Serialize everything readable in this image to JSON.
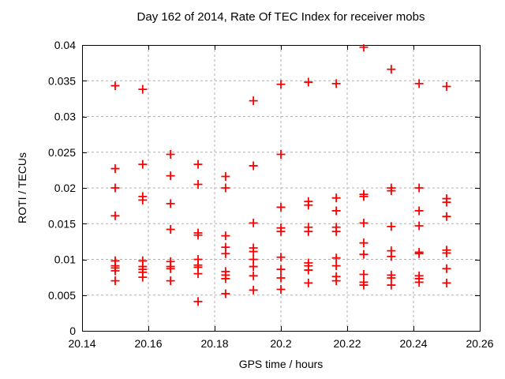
{
  "window": {
    "background": "#ffffff"
  },
  "chart_data": {
    "type": "scatter",
    "title": "Day 162 of 2014, Rate Of TEC Index for receiver mobs",
    "xlabel": "GPS time / hours",
    "ylabel": "ROTI / TECUs",
    "xlim": [
      20.14,
      20.26
    ],
    "ylim": [
      0,
      0.04
    ],
    "xtick_values": [
      20.14,
      20.16,
      20.18,
      20.2,
      20.22,
      20.24,
      20.26
    ],
    "xtick_labels": [
      "20.14",
      "20.16",
      "20.18",
      "20.2",
      "20.22",
      "20.24",
      "20.26"
    ],
    "ytick_values": [
      0,
      0.005,
      0.01,
      0.015,
      0.02,
      0.025,
      0.03,
      0.035,
      0.04
    ],
    "ytick_labels": [
      "0",
      "0.005",
      "0.01",
      "0.015",
      "0.02",
      "0.025",
      "0.03",
      "0.035",
      "0.04"
    ],
    "grid": true,
    "legend": "none",
    "marker": {
      "shape": "plus",
      "color": "#ff0000",
      "size": 11
    },
    "colors": {
      "marker": "#ff0000",
      "grid": "#b0b0b0",
      "axis": "#000000",
      "background": "#ffffff"
    },
    "series": [
      {
        "name": "ROTI",
        "points": [
          [
            20.15,
            0.0343
          ],
          [
            20.15,
            0.0227
          ],
          [
            20.15,
            0.02
          ],
          [
            20.15,
            0.0161
          ],
          [
            20.15,
            0.0098
          ],
          [
            20.15,
            0.0091
          ],
          [
            20.15,
            0.0088
          ],
          [
            20.15,
            0.0084
          ],
          [
            20.15,
            0.007
          ],
          [
            20.1583,
            0.0338
          ],
          [
            20.1583,
            0.0233
          ],
          [
            20.1583,
            0.0188
          ],
          [
            20.1583,
            0.0183
          ],
          [
            20.1583,
            0.0098
          ],
          [
            20.1583,
            0.009
          ],
          [
            20.1583,
            0.0086
          ],
          [
            20.1583,
            0.0082
          ],
          [
            20.1583,
            0.0075
          ],
          [
            20.1667,
            0.0247
          ],
          [
            20.1667,
            0.0217
          ],
          [
            20.1667,
            0.0178
          ],
          [
            20.1667,
            0.0142
          ],
          [
            20.1667,
            0.0097
          ],
          [
            20.1667,
            0.009
          ],
          [
            20.1667,
            0.0087
          ],
          [
            20.1667,
            0.007
          ],
          [
            20.175,
            0.0233
          ],
          [
            20.175,
            0.0205
          ],
          [
            20.175,
            0.0137
          ],
          [
            20.175,
            0.0134
          ],
          [
            20.175,
            0.01
          ],
          [
            20.175,
            0.0092
          ],
          [
            20.175,
            0.0089
          ],
          [
            20.175,
            0.008
          ],
          [
            20.175,
            0.0041
          ],
          [
            20.1833,
            0.0216
          ],
          [
            20.1833,
            0.02
          ],
          [
            20.1833,
            0.0133
          ],
          [
            20.1833,
            0.0117
          ],
          [
            20.1833,
            0.0108
          ],
          [
            20.1833,
            0.0083
          ],
          [
            20.1833,
            0.0078
          ],
          [
            20.1833,
            0.0073
          ],
          [
            20.1833,
            0.0052
          ],
          [
            20.1917,
            0.0322
          ],
          [
            20.1917,
            0.0231
          ],
          [
            20.1917,
            0.0151
          ],
          [
            20.1917,
            0.0116
          ],
          [
            20.1917,
            0.0111
          ],
          [
            20.1917,
            0.01
          ],
          [
            20.1917,
            0.009
          ],
          [
            20.1917,
            0.0077
          ],
          [
            20.1917,
            0.0057
          ],
          [
            20.2,
            0.0345
          ],
          [
            20.2,
            0.0247
          ],
          [
            20.2,
            0.0173
          ],
          [
            20.2,
            0.0144
          ],
          [
            20.2,
            0.0139
          ],
          [
            20.2,
            0.0103
          ],
          [
            20.2,
            0.0086
          ],
          [
            20.2,
            0.0074
          ],
          [
            20.2,
            0.0058
          ],
          [
            20.2083,
            0.0348
          ],
          [
            20.2083,
            0.0181
          ],
          [
            20.2083,
            0.0176
          ],
          [
            20.2083,
            0.0145
          ],
          [
            20.2083,
            0.0139
          ],
          [
            20.2083,
            0.0095
          ],
          [
            20.2083,
            0.0091
          ],
          [
            20.2083,
            0.0085
          ],
          [
            20.2083,
            0.0067
          ],
          [
            20.2167,
            0.0346
          ],
          [
            20.2167,
            0.0186
          ],
          [
            20.2167,
            0.0168
          ],
          [
            20.2167,
            0.0145
          ],
          [
            20.2167,
            0.0139
          ],
          [
            20.2167,
            0.0102
          ],
          [
            20.2167,
            0.0091
          ],
          [
            20.2167,
            0.0076
          ],
          [
            20.2167,
            0.007
          ],
          [
            20.225,
            0.0397
          ],
          [
            20.225,
            0.0191
          ],
          [
            20.225,
            0.0188
          ],
          [
            20.225,
            0.0151
          ],
          [
            20.225,
            0.0123
          ],
          [
            20.225,
            0.0107
          ],
          [
            20.225,
            0.0079
          ],
          [
            20.225,
            0.0068
          ],
          [
            20.225,
            0.0064
          ],
          [
            20.2333,
            0.0366
          ],
          [
            20.2333,
            0.02
          ],
          [
            20.2333,
            0.0196
          ],
          [
            20.2333,
            0.0146
          ],
          [
            20.2333,
            0.0112
          ],
          [
            20.2333,
            0.0104
          ],
          [
            20.2333,
            0.0078
          ],
          [
            20.2333,
            0.0074
          ],
          [
            20.2333,
            0.0064
          ],
          [
            20.2417,
            0.0346
          ],
          [
            20.2417,
            0.02
          ],
          [
            20.2417,
            0.0168
          ],
          [
            20.2417,
            0.0147
          ],
          [
            20.2417,
            0.011
          ],
          [
            20.2417,
            0.0108
          ],
          [
            20.2417,
            0.0077
          ],
          [
            20.2417,
            0.0073
          ],
          [
            20.2417,
            0.0068
          ],
          [
            20.25,
            0.0342
          ],
          [
            20.25,
            0.0185
          ],
          [
            20.25,
            0.018
          ],
          [
            20.25,
            0.016
          ],
          [
            20.25,
            0.0113
          ],
          [
            20.25,
            0.0109
          ],
          [
            20.25,
            0.0087
          ],
          [
            20.25,
            0.0067
          ]
        ]
      }
    ]
  }
}
